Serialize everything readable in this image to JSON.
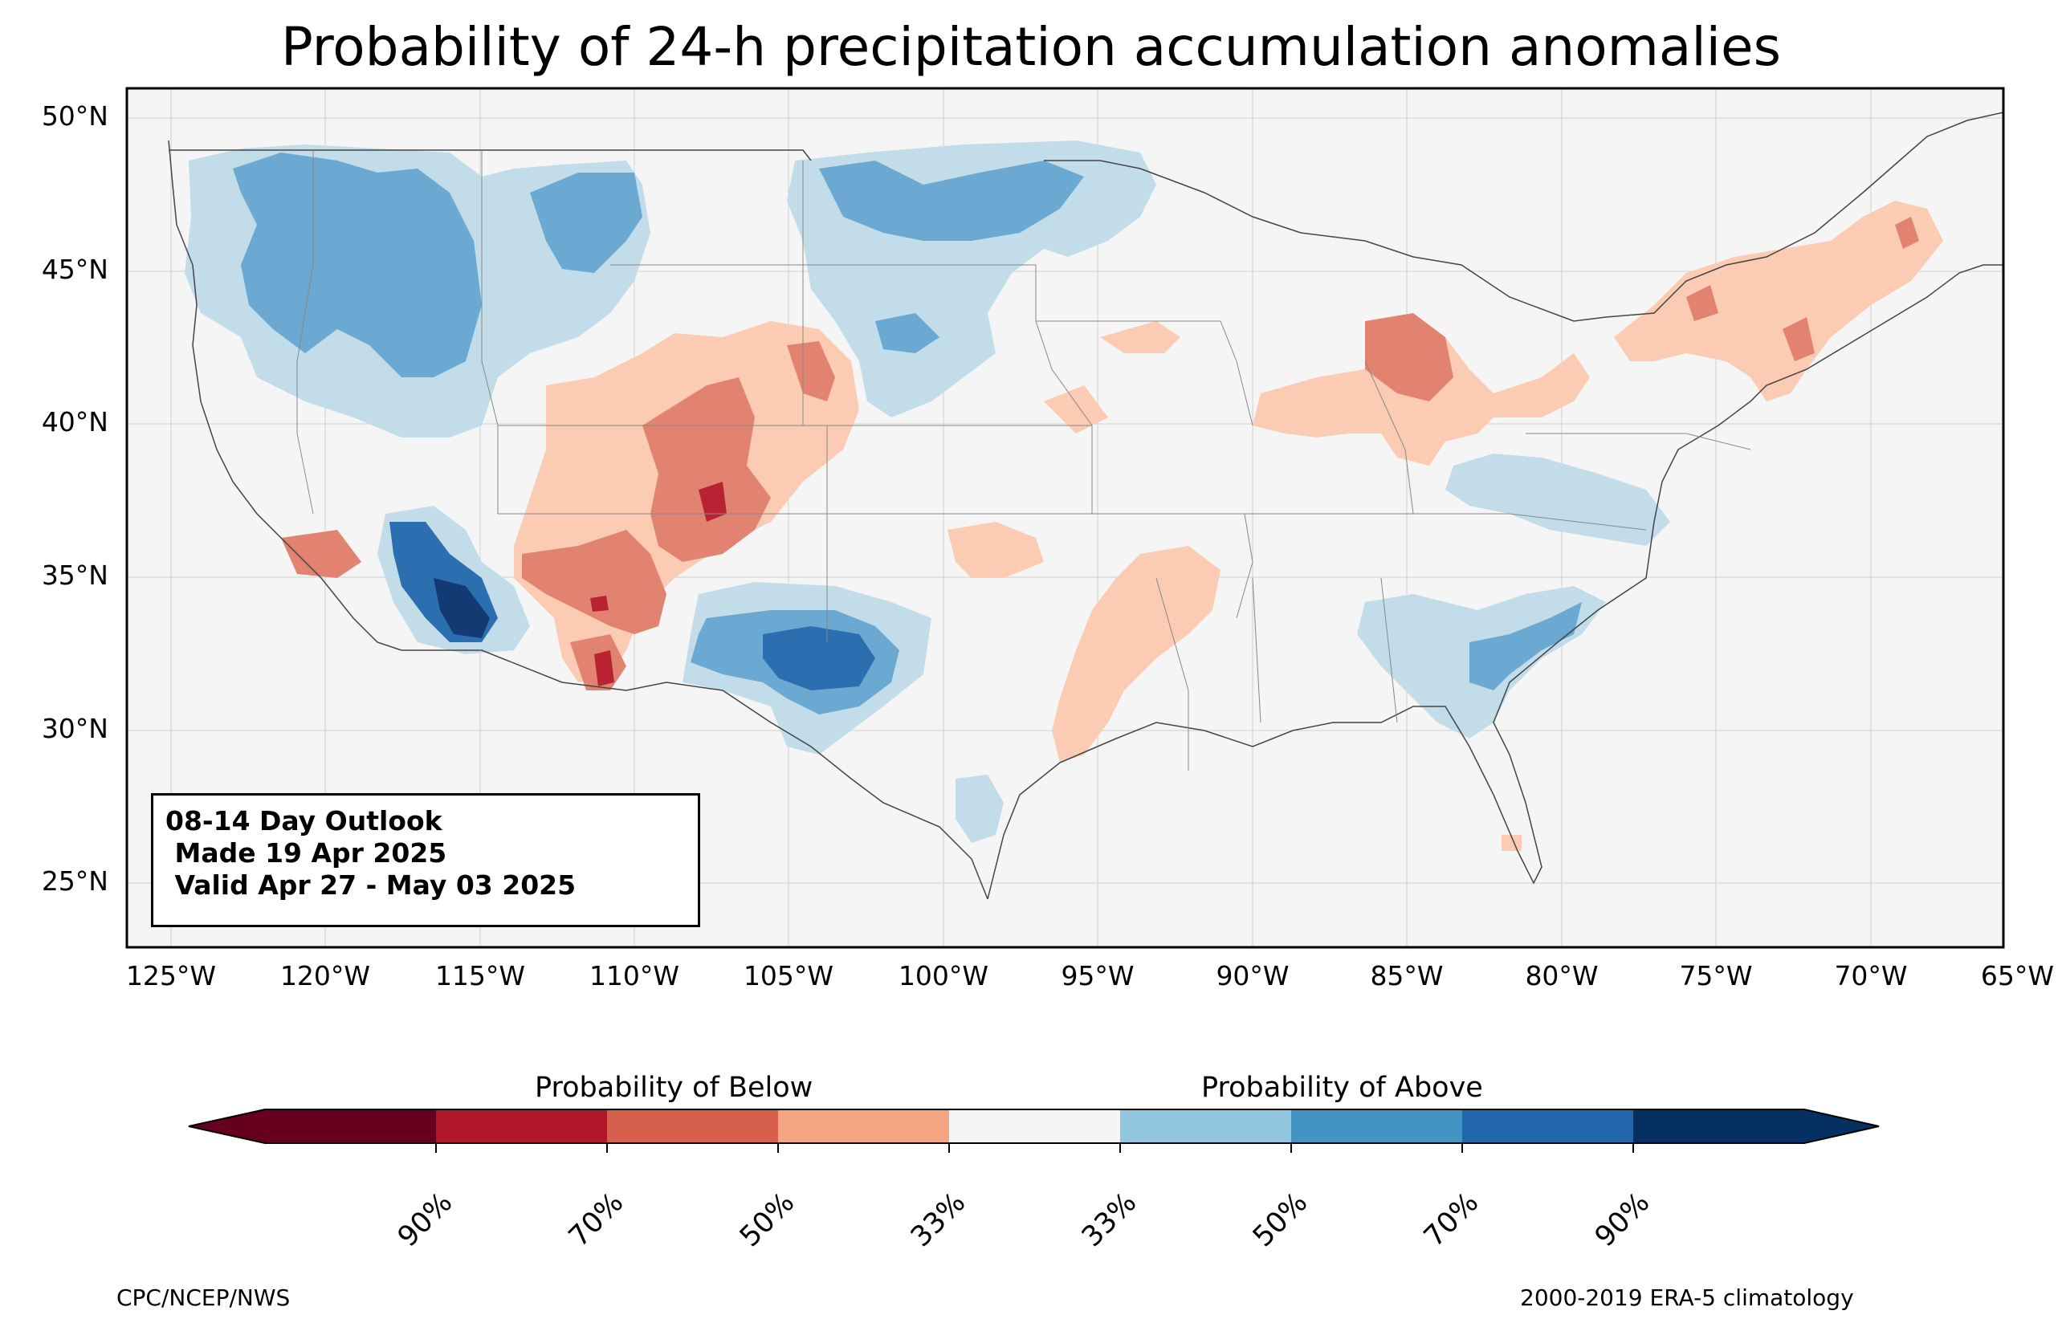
{
  "title": "Probability of 24-h precipitation accumulation anomalies",
  "lat_labels": [
    "50°N",
    "45°N",
    "40°N",
    "35°N",
    "30°N",
    "25°N"
  ],
  "lon_labels": [
    "125°W",
    "120°W",
    "115°W",
    "110°W",
    "105°W",
    "100°W",
    "95°W",
    "90°W",
    "85°W",
    "80°W",
    "75°W",
    "70°W",
    "65°W"
  ],
  "outlook": {
    "line1": "08-14 Day Outlook",
    "line2": " Made 19 Apr 2025",
    "line3": " Valid Apr 27 - May 03 2025"
  },
  "colorbar": {
    "below_label": "Probability of Below",
    "above_label": "Probability of Above",
    "tick_labels": [
      "90%",
      "70%",
      "50%",
      "33%",
      "33%",
      "50%",
      "70%",
      "90%"
    ],
    "colors": [
      "#67001f",
      "#b2182b",
      "#d6604d",
      "#f4a582",
      "#f5f5f5",
      "#92c5de",
      "#4393c3",
      "#2166ac",
      "#053061"
    ],
    "bands": [
      "#fbcbb3",
      "#e28270",
      "#b82334",
      "#c2dcea",
      "#6ba9d2",
      "#2b6fb1",
      "#133a72"
    ]
  },
  "credits": {
    "left": "CPC/NCEP/NWS",
    "right": "2000-2019 ERA-5 climatology"
  }
}
